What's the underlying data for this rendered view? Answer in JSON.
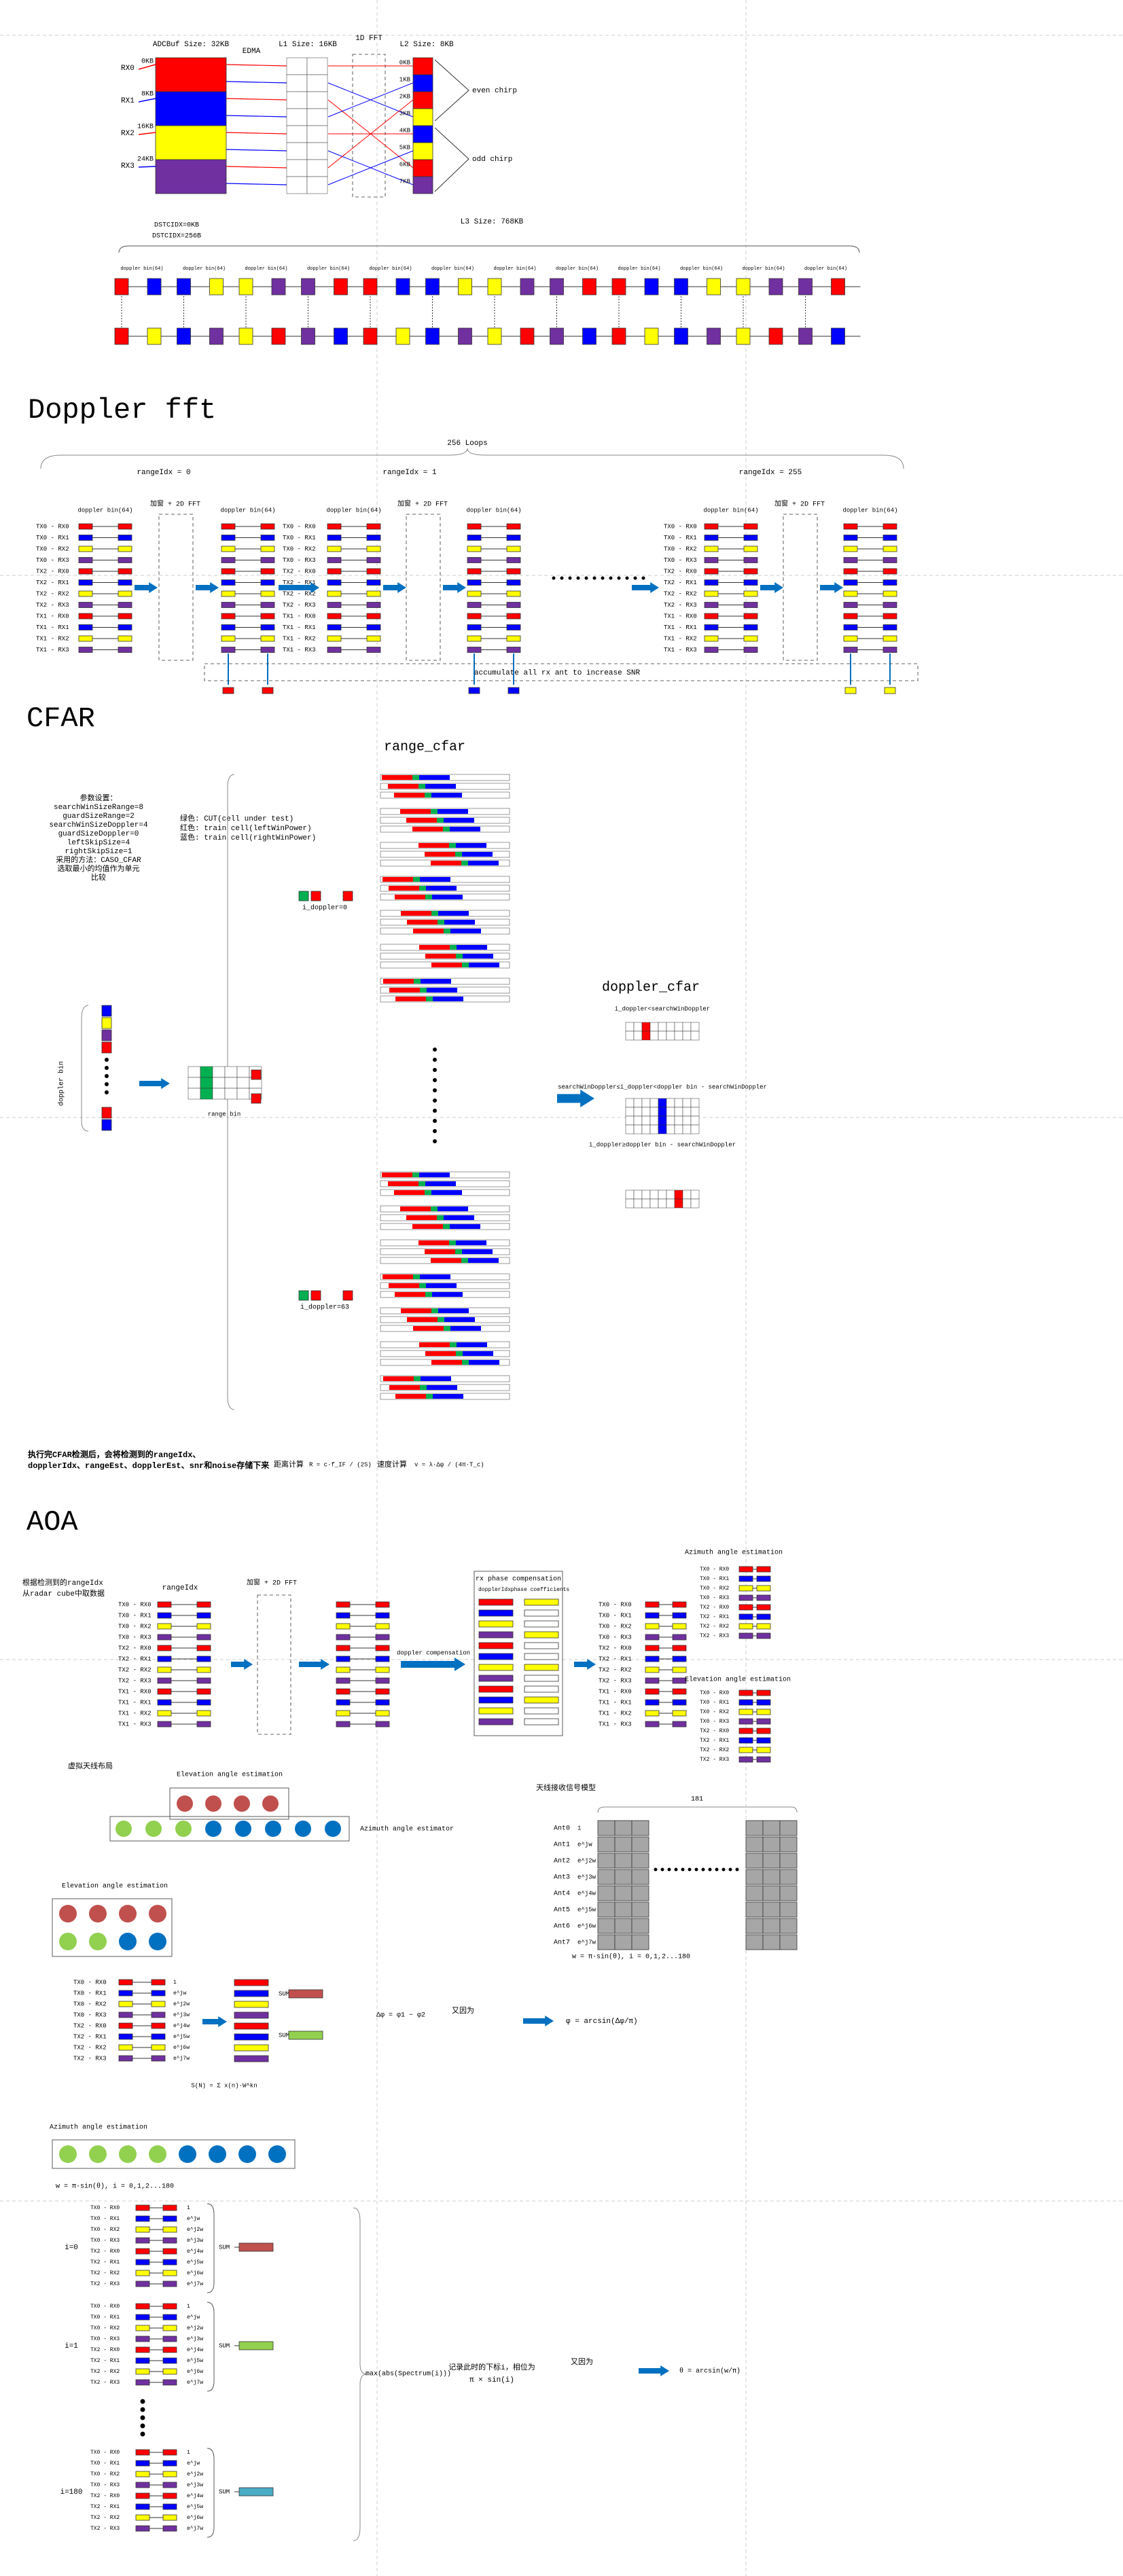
{
  "adc": {
    "adcbuf_title": "ADCBuf Size: 32KB",
    "edma": "EDMA",
    "l1_title": "L1 Size: 16KB",
    "fft_title": "1D FFT",
    "l2_title": "L2 Size: 8KB",
    "adc_offsets": [
      "0KB",
      "8KB",
      "16KB",
      "24KB"
    ],
    "rx": [
      "RX0",
      "RX1",
      "RX2",
      "RX3"
    ],
    "l2_offsets": [
      "0KB",
      "1KB",
      "2KB",
      "3KB",
      "4KB",
      "5KB",
      "6KB",
      "7KB"
    ],
    "even_chirp": "even chirp",
    "odd_chirp": "odd chirp",
    "dstcidx": [
      "DSTCIDX=0KB",
      "DSTCIDX=256B"
    ],
    "l3_title": "L3 Size: 768KB",
    "l3_bin": "doppler bin(64)"
  },
  "doppler": {
    "heading": "Doppler fft",
    "loops": "256 Loops",
    "range_idx": [
      "rangeIdx = 0",
      "rangeIdx = 1",
      "rangeIdx = 255"
    ],
    "bin_label": "doppler bin(64)",
    "window": "加窗 + 2D FFT",
    "rows": [
      "TX0 - RX0",
      "TX0 - RX1",
      "TX0 - RX2",
      "TX0 - RX3",
      "TX2 - RX0",
      "TX2 - RX1",
      "TX2 - RX2",
      "TX2 - RX3",
      "TX1 - RX0",
      "TX1 - RX1",
      "TX1 - RX2",
      "TX1 - RX3"
    ],
    "accumulate": "accumulate all rx ant to increase SNR"
  },
  "cfar": {
    "heading": "CFAR",
    "params": [
      "参数设置：",
      "searchWinSizeRange=8",
      "guardSizeRange=2",
      "searchWinSizeDoppler=4",
      "guardSizeDoppler=0",
      "leftSkipSize=4",
      "rightSkipSize=1",
      "采用的方法：CASO_CFAR",
      "选取最小的均值作为单元",
      "比较"
    ],
    "legend": [
      "绿色: CUT(cell under test)",
      "红色: train cell(leftWinPower)",
      "蓝色: train cell(rightWinPower)"
    ],
    "range_cfar": "range_cfar",
    "doppler_cfar": "doppler_cfar",
    "i_doppler_first": "i_doppler=0",
    "i_doppler_last": "i_doppler=63",
    "doppler_cases": [
      "i_doppler<searchWinDoppler",
      "searchWinDoppler≤i_doppler<doppler bin - searchWinDoppler",
      "i_doppler≥doppler bin - searchWinDoppler"
    ],
    "doppler_bin": "doppler bin",
    "range_bin": "range bin",
    "summary": [
      "执行完CFAR检测后，会将检测到的rangeIdx、",
      "dopplerIdx、rangeEst、dopplerEst、snr和noise存储下来"
    ],
    "range_calc": "距离计算",
    "range_formula": "R = c·f_IF / (2S)",
    "velocity_calc": "速度计算",
    "velocity_formula": "v = λ·Δφ / (4π·T_c)"
  },
  "aoa": {
    "heading": "AOA",
    "fetch": [
      "根据检测到的rangeIdx",
      "从radar cube中取数据"
    ],
    "range_idx": "rangeIdx",
    "window": "加窗 + 2D FFT",
    "doppler_comp": "doppler compensation",
    "rx_comp": "rx phase compensation",
    "doppler_idx": "dopplerIdx",
    "phase_coef": "phase coefficients",
    "azimuth": "Azimuth angle estimation",
    "elevation": "Elevation angle estimation",
    "virtual_layout": "虚拟天线布局",
    "azimuth_estimator": "Azimuth angle estimator",
    "signal_model": "天线接收信号模型",
    "ants": [
      "Ant0",
      "Ant1",
      "Ant2",
      "Ant3",
      "Ant4",
      "Ant5",
      "Ant6",
      "Ant7"
    ],
    "ant_phase": [
      "1",
      "e^jw",
      "e^j2w",
      "e^j3w",
      "e^j4w",
      "e^j5w",
      "e^j6w",
      "e^j7w"
    ],
    "bins": "181",
    "w_formula": "w = π·sin(θ), i = 0,1,2...180",
    "sum": "SUM",
    "delta": "Δφ = φ1 − φ2",
    "because": "又因为",
    "phi_formula": "φ = arcsin(Δφ/π)",
    "dft_formula": "S(N) = Σ x(n)·W^kn",
    "i_labels": [
      "i=0",
      "i=1",
      "i=180"
    ],
    "max_spec": "max(abs(Spectrum(i)))",
    "record": [
      "记录此时的下标i，相位为",
      "π × sin(i)"
    ],
    "theta_formula": "θ = arcsin(w/π)"
  }
}
